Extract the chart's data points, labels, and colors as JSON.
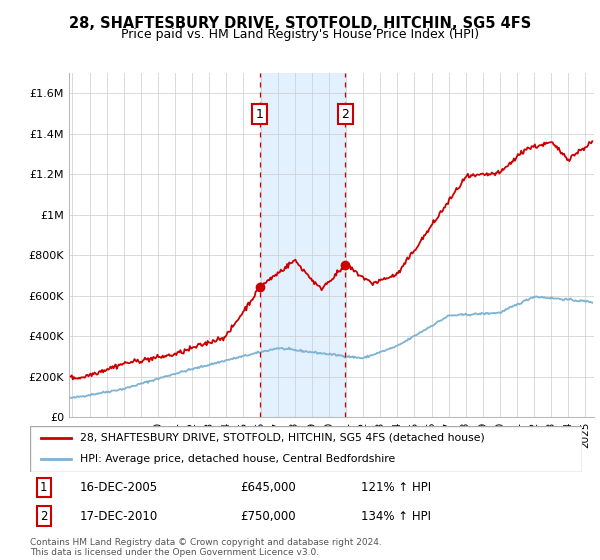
{
  "title": "28, SHAFTESBURY DRIVE, STOTFOLD, HITCHIN, SG5 4FS",
  "subtitle": "Price paid vs. HM Land Registry's House Price Index (HPI)",
  "title_fontsize": 10.5,
  "subtitle_fontsize": 9,
  "ylim": [
    0,
    1700000
  ],
  "yticks": [
    0,
    200000,
    400000,
    600000,
    800000,
    1000000,
    1200000,
    1400000,
    1600000
  ],
  "ytick_labels": [
    "£0",
    "£200K",
    "£400K",
    "£600K",
    "£800K",
    "£1M",
    "£1.2M",
    "£1.4M",
    "£1.6M"
  ],
  "xlim_start": 1994.8,
  "xlim_end": 2025.5,
  "purchase1_x": 2005.96,
  "purchase1_y": 645000,
  "purchase2_x": 2010.96,
  "purchase2_y": 750000,
  "legend_property": "28, SHAFTESBURY DRIVE, STOTFOLD, HITCHIN, SG5 4FS (detached house)",
  "legend_hpi": "HPI: Average price, detached house, Central Bedfordshire",
  "table_row1": [
    "1",
    "16-DEC-2005",
    "£645,000",
    "121% ↑ HPI"
  ],
  "table_row2": [
    "2",
    "17-DEC-2010",
    "£750,000",
    "134% ↑ HPI"
  ],
  "footer": "Contains HM Land Registry data © Crown copyright and database right 2024.\nThis data is licensed under the Open Government Licence v3.0.",
  "red_color": "#cc0000",
  "blue_color": "#7fb3d3",
  "shade_color": "#ddeeff",
  "background_color": "#ffffff",
  "grid_color": "#cccccc"
}
